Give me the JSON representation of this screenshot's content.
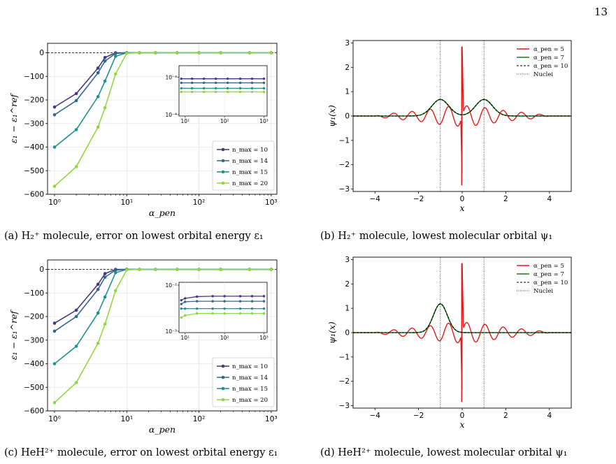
{
  "page_number": "13",
  "colors": {
    "n10": "#443983",
    "n14": "#31688e",
    "n15": "#21918c",
    "n20": "#90d743",
    "red": "#e41a1c",
    "green": "#1a7a1a"
  },
  "captions": {
    "a": "(a) H₂⁺ molecule, error on lowest orbital energy ε₁",
    "b": "(b) H₂⁺ molecule, lowest molecular orbital ψ₁",
    "c": "(c) HeH²⁺ molecule, error on lowest orbital energy ε₁",
    "d": "(d) HeH²⁺ molecule, lowest molecular orbital ψ₁"
  },
  "chart_data": [
    {
      "id": "a",
      "type": "line",
      "xlabel": "α_pen",
      "ylabel": "ε₁ − ε₁^ref",
      "xscale": "log",
      "xlim": [
        0.8,
        1200
      ],
      "ylim": [
        -600,
        40
      ],
      "xticks": [
        "10⁰",
        "10¹",
        "10²",
        "10³"
      ],
      "yticks": [
        0,
        -100,
        -200,
        -300,
        -400,
        -500,
        -600
      ],
      "ytick_labels": [
        "0",
        "−100",
        "−200",
        "−300",
        "−400",
        "−500",
        "−600"
      ],
      "reference_line": 0,
      "legend": "lower-right",
      "x": [
        1,
        2,
        4,
        5,
        7,
        10,
        15,
        25,
        50,
        100,
        200,
        500,
        1000
      ],
      "series": [
        {
          "name": "n_max = 10",
          "color_key": "n10",
          "values": [
            -230,
            -173,
            -65,
            -20,
            0,
            0,
            0,
            0,
            0,
            0,
            0,
            0,
            0
          ]
        },
        {
          "name": "n_max = 14",
          "color_key": "n14",
          "values": [
            -263,
            -203,
            -85,
            -35,
            -3,
            0,
            0,
            0,
            0,
            0,
            0,
            0,
            0
          ]
        },
        {
          "name": "n_max = 15",
          "color_key": "n15",
          "values": [
            -400,
            -326,
            -186,
            -120,
            -15,
            0,
            0,
            0,
            0,
            0,
            0,
            0,
            0
          ]
        },
        {
          "name": "n_max = 20",
          "color_key": "n20",
          "values": [
            -566,
            -483,
            -315,
            -233,
            -90,
            -2,
            0,
            0,
            0,
            0,
            0,
            0,
            0
          ]
        }
      ],
      "inset": {
        "xscale": "log",
        "yscale": "log",
        "ylim": [
          0.0001,
          0.002
        ],
        "xticks": [
          "10¹",
          "10²",
          "10³"
        ],
        "yticks": [
          "10⁻³",
          "10⁻⁴"
        ],
        "x": [
          8,
          15,
          30,
          60,
          120,
          250,
          500,
          1000
        ],
        "series": [
          {
            "color_key": "n10",
            "values": [
              0.00092,
              0.00092,
              0.00092,
              0.00092,
              0.00092,
              0.00092,
              0.00092,
              0.00092
            ]
          },
          {
            "color_key": "n14",
            "values": [
              0.00072,
              0.00072,
              0.00072,
              0.00072,
              0.00072,
              0.00072,
              0.00072,
              0.00072
            ]
          },
          {
            "color_key": "n15",
            "values": [
              0.00052,
              0.00052,
              0.00052,
              0.00052,
              0.00052,
              0.00052,
              0.00052,
              0.00052
            ]
          },
          {
            "color_key": "n20",
            "values": [
              0.00042,
              0.00042,
              0.00042,
              0.00042,
              0.00042,
              0.00042,
              0.00042,
              0.00042
            ]
          }
        ]
      }
    },
    {
      "id": "b",
      "type": "line",
      "xlabel": "x",
      "ylabel": "ψ₁(x)",
      "xlim": [
        -5,
        5
      ],
      "ylim": [
        -3.1,
        3.1
      ],
      "xticks": [
        -4,
        -2,
        0,
        2,
        4
      ],
      "xtick_labels": [
        "−4",
        "−2",
        "0",
        "2",
        "4"
      ],
      "yticks": [
        3,
        2,
        1,
        0,
        -1,
        -2,
        -3
      ],
      "ytick_labels": [
        "3",
        "2",
        "1",
        "0",
        "−1",
        "−2",
        "−3"
      ],
      "nuclei": [
        -1,
        1
      ],
      "legend": "top-right",
      "legend_entries": [
        {
          "name": "α_pen = 5",
          "style": "red"
        },
        {
          "name": "α_pen = 7",
          "style": "green"
        },
        {
          "name": "α_pen = 10",
          "style": "dashed"
        },
        {
          "name": "Nuclei",
          "style": "dotted"
        }
      ],
      "smooth_curve": {
        "shape": "double-gaussian",
        "centers": [
          -1,
          1
        ],
        "amplitudes": [
          0.68,
          0.68
        ],
        "width": 0.55
      },
      "oscillation": {
        "amplitude": 0.35,
        "frequency": 7.5,
        "envelope_halfwidth": 3.5,
        "spike": [
          2.85,
          -2.85
        ]
      }
    },
    {
      "id": "c",
      "type": "line",
      "xlabel": "α_pen",
      "ylabel": "ε₁ − ε₁^ref",
      "xscale": "log",
      "xlim": [
        0.8,
        1200
      ],
      "ylim": [
        -600,
        40
      ],
      "xticks": [
        "10⁰",
        "10¹",
        "10²",
        "10³"
      ],
      "yticks": [
        0,
        -100,
        -200,
        -300,
        -400,
        -500,
        -600
      ],
      "ytick_labels": [
        "0",
        "−100",
        "−200",
        "−300",
        "−400",
        "−500",
        "−600"
      ],
      "reference_line": 0,
      "legend": "lower-right",
      "x": [
        1,
        2,
        4,
        5,
        7,
        10,
        15,
        25,
        50,
        100,
        200,
        500,
        1000
      ],
      "series": [
        {
          "name": "n_max = 10",
          "color_key": "n10",
          "values": [
            -228,
            -173,
            -63,
            -18,
            0,
            0,
            0,
            0,
            0,
            0,
            0,
            0,
            0
          ]
        },
        {
          "name": "n_max = 14",
          "color_key": "n14",
          "values": [
            -262,
            -200,
            -85,
            -33,
            -3,
            0,
            0,
            0,
            0,
            0,
            0,
            0,
            0
          ]
        },
        {
          "name": "n_max = 15",
          "color_key": "n15",
          "values": [
            -400,
            -326,
            -185,
            -117,
            -14,
            0,
            0,
            0,
            0,
            0,
            0,
            0,
            0
          ]
        },
        {
          "name": "n_max = 20",
          "color_key": "n20",
          "values": [
            -565,
            -480,
            -313,
            -232,
            -90,
            -2,
            0,
            0,
            0,
            0,
            0,
            0,
            0
          ]
        }
      ],
      "inset": {
        "xscale": "log",
        "yscale": "log",
        "ylim": [
          0.001,
          0.01
        ],
        "xticks": [
          "10¹",
          "10²",
          "10³"
        ],
        "yticks": [
          "10⁻²",
          "10⁻³"
        ],
        "x": [
          8,
          10,
          20,
          50,
          100,
          250,
          500,
          1000
        ],
        "series": [
          {
            "color_key": "n10",
            "values": [
              0.0044,
              0.0048,
              0.0052,
              0.0053,
              0.0053,
              0.0053,
              0.0053,
              0.0053
            ]
          },
          {
            "color_key": "n14",
            "values": [
              0.0037,
              0.0041,
              0.0042,
              0.0042,
              0.0042,
              0.0042,
              0.0042,
              0.0042
            ]
          },
          {
            "color_key": "n15",
            "values": [
              0.003,
              0.003,
              0.003,
              0.003,
              0.003,
              0.003,
              0.003,
              0.003
            ]
          },
          {
            "color_key": "n20",
            "values": [
              0.002,
              0.0022,
              0.0024,
              0.0024,
              0.0024,
              0.0024,
              0.0024,
              0.0024
            ]
          }
        ]
      }
    },
    {
      "id": "d",
      "type": "line",
      "xlabel": "x",
      "ylabel": "ψ₁(x)",
      "xlim": [
        -5,
        5
      ],
      "ylim": [
        -3.1,
        3.1
      ],
      "xticks": [
        -4,
        -2,
        0,
        2,
        4
      ],
      "xtick_labels": [
        "−4",
        "−2",
        "0",
        "2",
        "4"
      ],
      "yticks": [
        3,
        2,
        1,
        0,
        -1,
        -2,
        -3
      ],
      "ytick_labels": [
        "3",
        "2",
        "1",
        "0",
        "−1",
        "−2",
        "−3"
      ],
      "nuclei": [
        -1,
        1
      ],
      "legend": "top-right",
      "legend_entries": [
        {
          "name": "α_pen = 5",
          "style": "red"
        },
        {
          "name": "α_pen = 7",
          "style": "green"
        },
        {
          "name": "α_pen = 10",
          "style": "dashed"
        },
        {
          "name": "Nuclei",
          "style": "dotted"
        }
      ],
      "smooth_curve": {
        "shape": "single-gaussian",
        "centers": [
          -1
        ],
        "amplitudes": [
          1.18
        ],
        "width": 0.45
      },
      "oscillation": {
        "amplitude": 0.35,
        "frequency": 7.5,
        "envelope_halfwidth": 3.5,
        "spike": [
          2.85,
          -2.85
        ]
      }
    }
  ]
}
